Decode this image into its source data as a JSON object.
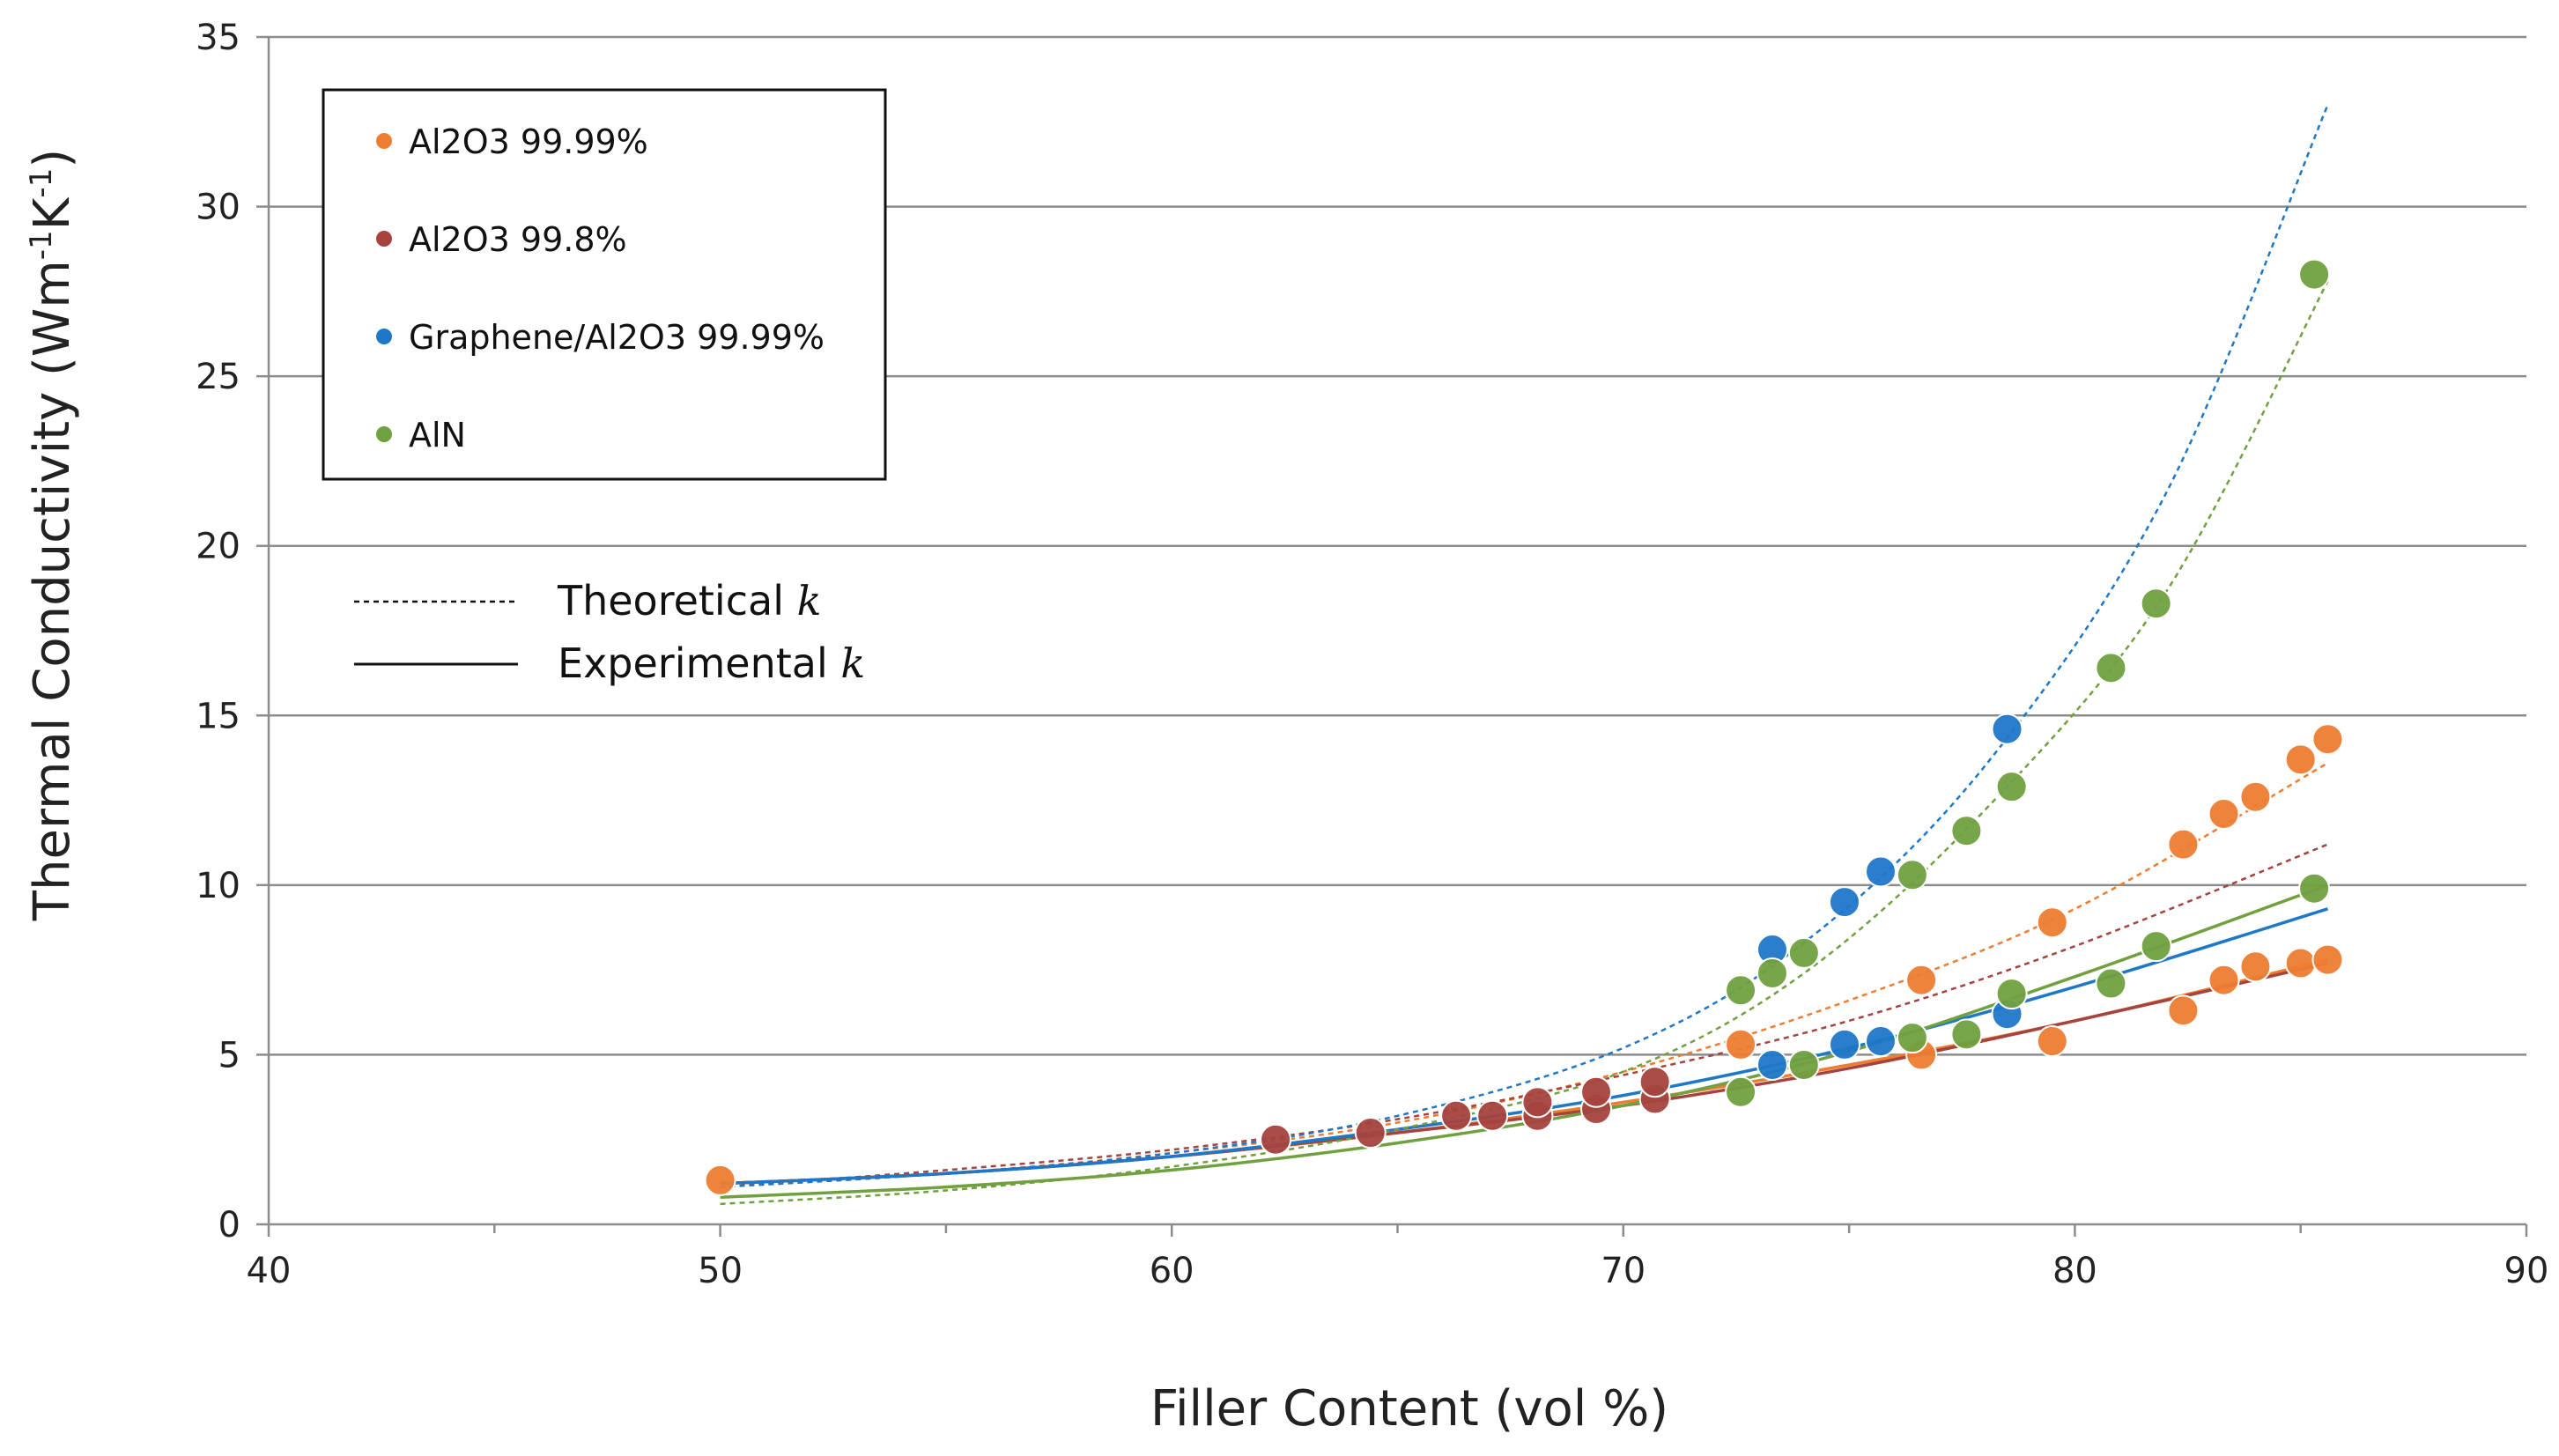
{
  "chart_data": {
    "type": "scatter",
    "title": "",
    "xlabel": "Filler Content (vol %)",
    "ylabel_main": "Thermal Conductivity (Wm",
    "ylabel_sup1": "-1",
    "ylabel_mid": "K",
    "ylabel_sup2": "-1",
    "ylabel_end": ")",
    "xlim": [
      40,
      90
    ],
    "ylim": [
      0,
      35
    ],
    "xticks": [
      40,
      50,
      60,
      70,
      80,
      90
    ],
    "yticks": [
      0,
      5,
      10,
      15,
      20,
      25,
      30,
      35
    ],
    "grid": "horizontal",
    "legend_position": "top-left",
    "series": [
      {
        "name": "Al2O3 99.99%",
        "color": "#ED7D31",
        "experimental": [
          [
            50.0,
            1.3
          ],
          [
            72.6,
            5.3
          ],
          [
            76.6,
            5.0
          ],
          [
            76.6,
            7.2
          ],
          [
            79.5,
            5.4
          ],
          [
            79.5,
            8.9
          ],
          [
            82.4,
            6.3
          ],
          [
            82.4,
            11.2
          ],
          [
            83.3,
            7.2
          ],
          [
            83.3,
            12.1
          ],
          [
            84.0,
            7.6
          ],
          [
            84.0,
            12.6
          ],
          [
            85.0,
            7.7
          ],
          [
            85.0,
            13.7
          ],
          [
            85.6,
            7.8
          ],
          [
            85.6,
            14.3
          ]
        ],
        "theoretical_curve": [
          [
            50,
            1.1
          ],
          [
            55,
            1.5
          ],
          [
            60,
            2.1
          ],
          [
            65,
            3.0
          ],
          [
            70,
            4.5
          ],
          [
            75,
            6.6
          ],
          [
            80,
            9.3
          ],
          [
            85.6,
            13.6
          ]
        ],
        "experimental_curve": [
          [
            50,
            1.2
          ],
          [
            55,
            1.5
          ],
          [
            60,
            2.0
          ],
          [
            65,
            2.7
          ],
          [
            70,
            3.6
          ],
          [
            75,
            4.7
          ],
          [
            80,
            6.0
          ],
          [
            85.6,
            7.8
          ]
        ]
      },
      {
        "name": "Al2O3 99.8%",
        "color": "#A5433E",
        "experimental": [
          [
            62.3,
            2.5
          ],
          [
            64.4,
            2.7
          ],
          [
            66.3,
            3.2
          ],
          [
            67.1,
            3.2
          ],
          [
            68.1,
            3.2
          ],
          [
            68.1,
            3.6
          ],
          [
            69.4,
            3.4
          ],
          [
            69.4,
            3.9
          ],
          [
            70.7,
            3.7
          ],
          [
            70.7,
            4.2
          ]
        ],
        "theoretical_curve": [
          [
            50,
            1.1
          ],
          [
            55,
            1.6
          ],
          [
            60,
            2.2
          ],
          [
            65,
            3.1
          ],
          [
            70,
            4.4
          ],
          [
            75,
            6.0
          ],
          [
            80,
            8.2
          ],
          [
            85.6,
            11.2
          ]
        ],
        "experimental_curve": [
          [
            50,
            1.2
          ],
          [
            55,
            1.5
          ],
          [
            60,
            2.0
          ],
          [
            65,
            2.7
          ],
          [
            70,
            3.5
          ],
          [
            75,
            4.6
          ],
          [
            80,
            6.0
          ],
          [
            85.6,
            7.7
          ]
        ]
      },
      {
        "name": "Graphene/Al2O3 99.99%",
        "color": "#1F77C8",
        "experimental": [
          [
            73.3,
            4.7
          ],
          [
            73.3,
            8.1
          ],
          [
            74.9,
            5.3
          ],
          [
            74.9,
            9.5
          ],
          [
            75.7,
            5.4
          ],
          [
            75.7,
            10.4
          ],
          [
            78.5,
            6.2
          ],
          [
            78.5,
            14.6
          ]
        ],
        "theoretical_curve": [
          [
            50,
            1.1
          ],
          [
            55,
            1.5
          ],
          [
            60,
            2.1
          ],
          [
            65,
            3.2
          ],
          [
            70,
            5.2
          ],
          [
            74,
            8.3
          ],
          [
            78,
            13.5
          ],
          [
            82,
            21.5
          ],
          [
            85.6,
            33.0
          ]
        ],
        "experimental_curve": [
          [
            50,
            1.2
          ],
          [
            55,
            1.5
          ],
          [
            60,
            2.0
          ],
          [
            65,
            2.8
          ],
          [
            70,
            3.8
          ],
          [
            75,
            5.2
          ],
          [
            80,
            7.0
          ],
          [
            85.6,
            9.3
          ]
        ]
      },
      {
        "name": "AlN",
        "color": "#70A03F",
        "experimental": [
          [
            72.6,
            3.9
          ],
          [
            72.6,
            6.9
          ],
          [
            73.3,
            7.4
          ],
          [
            74.0,
            4.7
          ],
          [
            74.0,
            8.0
          ],
          [
            76.4,
            5.5
          ],
          [
            76.4,
            10.3
          ],
          [
            77.6,
            5.6
          ],
          [
            77.6,
            11.6
          ],
          [
            78.6,
            6.8
          ],
          [
            78.6,
            12.9
          ],
          [
            80.8,
            7.1
          ],
          [
            80.8,
            16.4
          ],
          [
            81.8,
            8.2
          ],
          [
            81.8,
            18.3
          ],
          [
            85.3,
            9.9
          ],
          [
            85.3,
            28.0
          ]
        ],
        "theoretical_curve": [
          [
            50,
            0.6
          ],
          [
            55,
            1.0
          ],
          [
            60,
            1.7
          ],
          [
            65,
            2.8
          ],
          [
            70,
            4.5
          ],
          [
            74,
            7.4
          ],
          [
            78,
            12.2
          ],
          [
            82,
            18.6
          ],
          [
            85.6,
            27.8
          ]
        ],
        "experimental_curve": [
          [
            50,
            0.8
          ],
          [
            55,
            1.1
          ],
          [
            60,
            1.6
          ],
          [
            65,
            2.4
          ],
          [
            70,
            3.5
          ],
          [
            75,
            5.1
          ],
          [
            80,
            7.3
          ],
          [
            85.6,
            10.0
          ]
        ]
      }
    ],
    "line_legend": [
      {
        "label": "Theoretical ",
        "k": "k",
        "style": "dashed"
      },
      {
        "label": "Experimental ",
        "k": "k",
        "style": "solid"
      }
    ]
  }
}
